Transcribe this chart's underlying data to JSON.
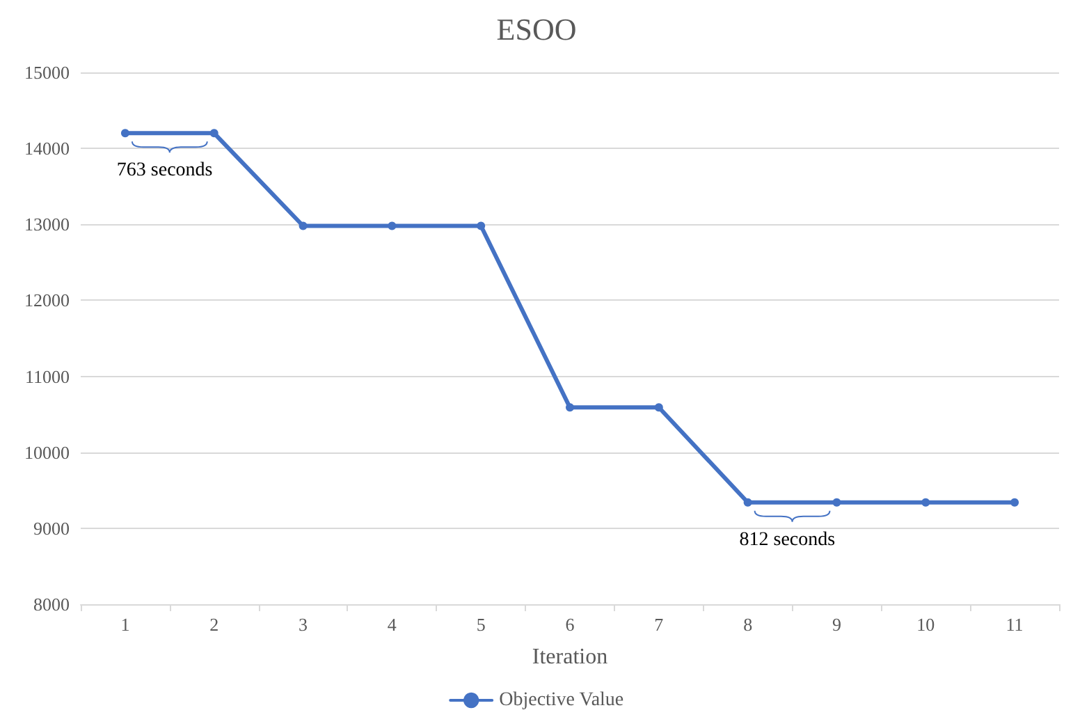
{
  "chart_data": {
    "type": "line",
    "title": "ESOO",
    "xlabel": "Iteration",
    "categories": [
      "1",
      "2",
      "3",
      "4",
      "5",
      "6",
      "7",
      "8",
      "9",
      "10",
      "11"
    ],
    "series": [
      {
        "name": "Objective Value",
        "color": "#4472c4",
        "values": [
          14200,
          14200,
          12980,
          12980,
          12980,
          10590,
          10590,
          9340,
          9340,
          9340,
          9340
        ]
      }
    ],
    "ylim": [
      8000,
      15000
    ],
    "yticks": [
      8000,
      9000,
      10000,
      11000,
      12000,
      13000,
      14000,
      15000
    ],
    "grid": "y",
    "legend": "bottom",
    "marker": "circle",
    "line_style": "solid",
    "annotations": [
      {
        "text": "763 seconds",
        "x": "1",
        "y": 14200
      },
      {
        "text": "812 seconds",
        "x": "8",
        "y": 9340
      }
    ]
  }
}
